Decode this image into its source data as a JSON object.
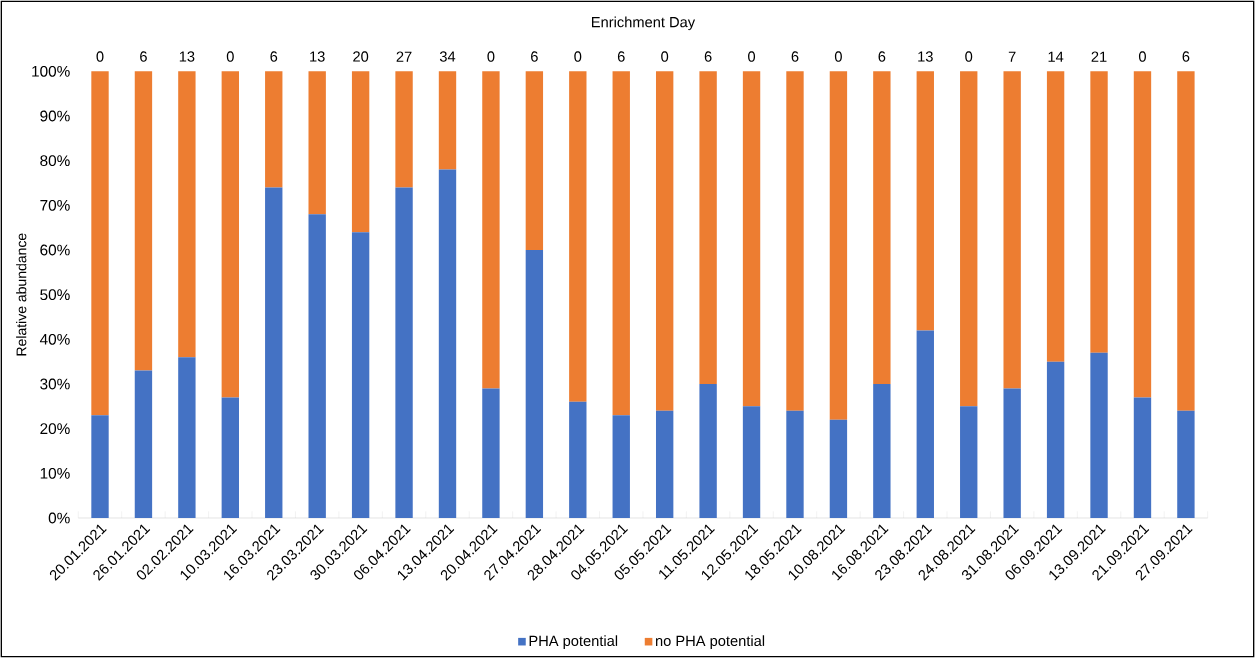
{
  "chart_data": {
    "type": "bar",
    "stacked": true,
    "x2label": "Enrichment Day",
    "ylabel": "Relative abundance",
    "categories": [
      "20.01.2021",
      "26.01.2021",
      "02.02.2021",
      "10.03.2021",
      "16.03.2021",
      "23.03.2021",
      "30.03.2021",
      "06.04.2021",
      "13.04.2021",
      "20.04.2021",
      "27.04.2021",
      "28.04.2021",
      "04.05.2021",
      "05.05.2021",
      "11.05.2021",
      "12.05.2021",
      "18.05.2021",
      "10.08.2021",
      "16.08.2021",
      "23.08.2021",
      "24.08.2021",
      "31.08.2021",
      "06.09.2021",
      "13.09.2021",
      "21.09.2021",
      "27.09.2021"
    ],
    "series": [
      {
        "name": "PHA potential",
        "color": "#4472c4",
        "values": [
          23,
          33,
          36,
          27,
          74,
          68,
          64,
          74,
          78,
          29,
          60,
          26,
          23,
          24,
          30,
          25,
          24,
          22,
          30,
          42,
          25,
          29,
          35,
          37,
          27,
          24
        ]
      },
      {
        "name": "no PHA potential",
        "color": "#ed7d31",
        "values": [
          77,
          67,
          64,
          73,
          26,
          32,
          36,
          26,
          22,
          71,
          40,
          74,
          77,
          76,
          70,
          75,
          76,
          78,
          70,
          58,
          75,
          71,
          65,
          63,
          73,
          76
        ]
      }
    ],
    "ylim": [
      0,
      100
    ],
    "yticks": [
      {
        "value": 0,
        "label": "0%"
      },
      {
        "value": 10,
        "label": "10%"
      },
      {
        "value": 20,
        "label": "20%"
      },
      {
        "value": 30,
        "label": "30%"
      },
      {
        "value": 40,
        "label": "40%"
      },
      {
        "value": 50,
        "label": "50%"
      },
      {
        "value": 60,
        "label": "60%"
      },
      {
        "value": 70,
        "label": "70%"
      },
      {
        "value": 80,
        "label": "80%"
      },
      {
        "value": 90,
        "label": "90%"
      },
      {
        "value": 100,
        "label": "100%"
      }
    ],
    "annotations": [
      {
        "text": "0",
        "x": "20.01.2021",
        "y": 100
      },
      {
        "text": "6",
        "x": "26.01.2021",
        "y": 100
      },
      {
        "text": "13",
        "x": "02.02.2021",
        "y": 100
      },
      {
        "text": "0",
        "x": "10.03.2021",
        "y": 100
      },
      {
        "text": "6",
        "x": "16.03.2021",
        "y": 100
      },
      {
        "text": "13",
        "x": "23.03.2021",
        "y": 100
      },
      {
        "text": "20",
        "x": "30.03.2021",
        "y": 100
      },
      {
        "text": "27",
        "x": "06.04.2021",
        "y": 100
      },
      {
        "text": "34",
        "x": "13.04.2021",
        "y": 100
      },
      {
        "text": "0",
        "x": "20.04.2021",
        "y": 100
      },
      {
        "text": "6",
        "x": "27.04.2021",
        "y": 100
      },
      {
        "text": "0",
        "x": "28.04.2021",
        "y": 100
      },
      {
        "text": "6",
        "x": "04.05.2021",
        "y": 100
      },
      {
        "text": "0",
        "x": "05.05.2021",
        "y": 100
      },
      {
        "text": "6",
        "x": "11.05.2021",
        "y": 100
      },
      {
        "text": "0",
        "x": "12.05.2021",
        "y": 100
      },
      {
        "text": "6",
        "x": "18.05.2021",
        "y": 100
      },
      {
        "text": "0",
        "x": "10.08.2021",
        "y": 100
      },
      {
        "text": "6",
        "x": "16.08.2021",
        "y": 100
      },
      {
        "text": "13",
        "x": "23.08.2021",
        "y": 100
      },
      {
        "text": "0",
        "x": "24.08.2021",
        "y": 100
      },
      {
        "text": "7",
        "x": "31.08.2021",
        "y": 100
      },
      {
        "text": "14",
        "x": "06.09.2021",
        "y": 100
      },
      {
        "text": "21",
        "x": "13.09.2021",
        "y": 100
      },
      {
        "text": "0",
        "x": "21.09.2021",
        "y": 100
      },
      {
        "text": "6",
        "x": "27.09.2021",
        "y": 100
      }
    ],
    "legend": "bottom",
    "grid": false
  }
}
